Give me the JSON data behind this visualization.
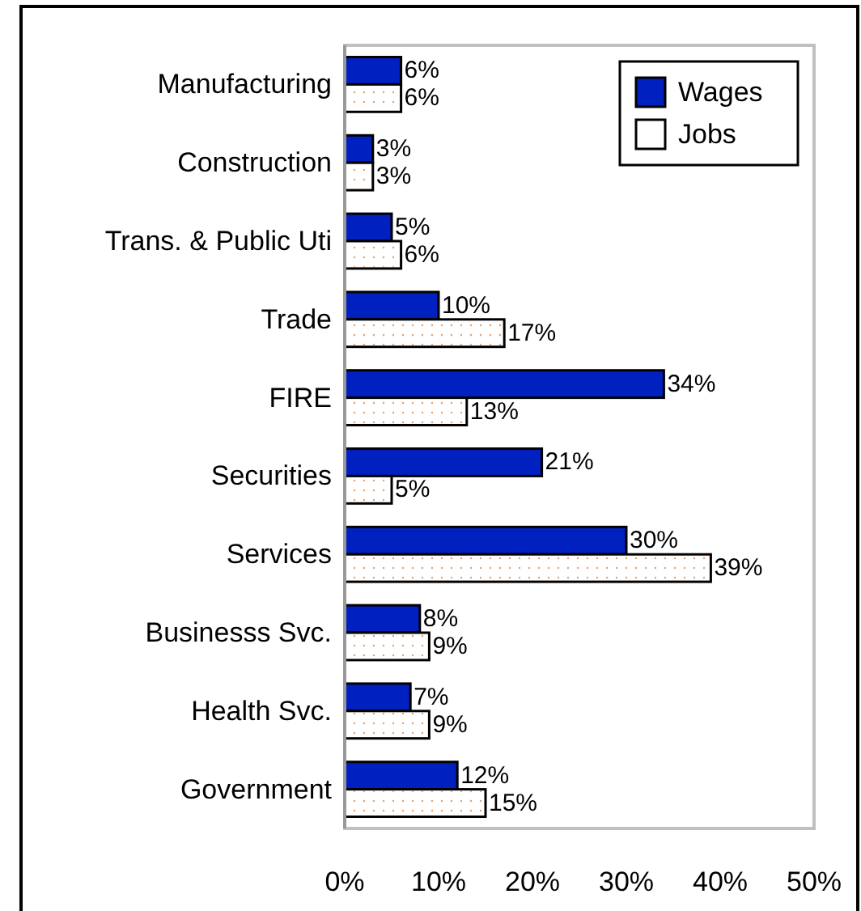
{
  "chart_data": {
    "type": "bar",
    "orientation": "horizontal",
    "categories": [
      "Manufacturing",
      "Construction",
      "Trans. & Public Uti",
      "Trade",
      "FIRE",
      "Securities",
      "Services",
      "Businesss Svc.",
      "Health Svc.",
      "Government"
    ],
    "series": [
      {
        "name": "Wages",
        "color": "#0020c0",
        "values": [
          6,
          3,
          5,
          10,
          34,
          21,
          30,
          8,
          7,
          12
        ],
        "value_labels": [
          "6%",
          "3%",
          "5%",
          "10%",
          "34%",
          "21%",
          "30%",
          "8%",
          "7%",
          "12%"
        ]
      },
      {
        "name": "Jobs",
        "color": "#ffffff",
        "values": [
          6,
          3,
          6,
          17,
          13,
          5,
          39,
          9,
          9,
          15
        ],
        "value_labels": [
          "6%",
          "3%",
          "6%",
          "17%",
          "13%",
          "5%",
          "39%",
          "9%",
          "9%",
          "15%"
        ]
      }
    ],
    "xlim": [
      0,
      50
    ],
    "xticks": [
      {
        "value": 0,
        "label": "0%"
      },
      {
        "value": 10,
        "label": "10%"
      },
      {
        "value": 20,
        "label": "20%"
      },
      {
        "value": 30,
        "label": "30%"
      },
      {
        "value": 40,
        "label": "40%"
      },
      {
        "value": 50,
        "label": "50%"
      }
    ],
    "legend": "top right",
    "grid": false
  }
}
